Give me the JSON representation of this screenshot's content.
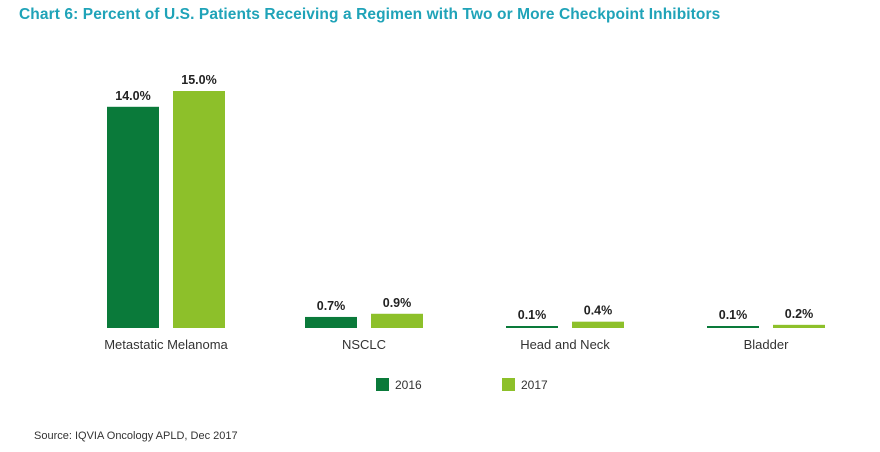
{
  "title": "Chart 6: Percent of U.S. Patients Receiving a Regimen with Two or More Checkpoint Inhibitors",
  "source": "Source: IQVIA Oncology APLD, Dec 2017",
  "colors": {
    "title": "#1fa3b8",
    "series_2016": "#0a7a3a",
    "series_2017": "#8dc02a"
  },
  "chart_data": {
    "type": "bar",
    "title": "Chart 6: Percent of U.S. Patients Receiving a Regimen with Two or More Checkpoint Inhibitors",
    "xlabel": "",
    "ylabel": "",
    "categories": [
      "Metastatic Melanoma",
      "NSCLC",
      "Head and Neck",
      "Bladder"
    ],
    "series": [
      {
        "name": "2016",
        "values": [
          14.0,
          0.7,
          0.1,
          0.1
        ],
        "labels": [
          "14.0%",
          "0.7%",
          "0.1%",
          "0.1%"
        ],
        "color": "#0a7a3a"
      },
      {
        "name": "2017",
        "values": [
          15.0,
          0.9,
          0.4,
          0.2
        ],
        "labels": [
          "15.0%",
          "0.9%",
          "0.4%",
          "0.2%"
        ],
        "color": "#8dc02a"
      }
    ],
    "ylim": [
      0,
      15
    ],
    "grid": false,
    "legend": "bottom-center"
  }
}
